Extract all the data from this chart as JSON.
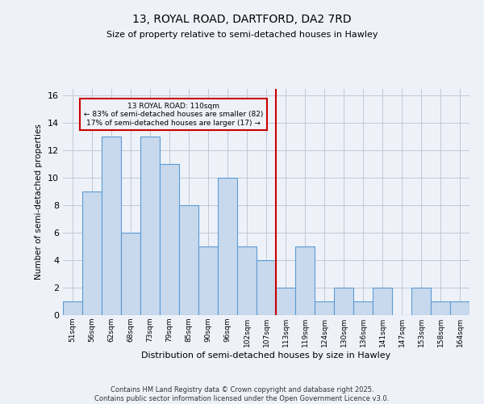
{
  "title": "13, ROYAL ROAD, DARTFORD, DA2 7RD",
  "subtitle": "Size of property relative to semi-detached houses in Hawley",
  "xlabel": "Distribution of semi-detached houses by size in Hawley",
  "ylabel": "Number of semi-detached properties",
  "categories": [
    "51sqm",
    "56sqm",
    "62sqm",
    "68sqm",
    "73sqm",
    "79sqm",
    "85sqm",
    "90sqm",
    "96sqm",
    "102sqm",
    "107sqm",
    "113sqm",
    "119sqm",
    "124sqm",
    "130sqm",
    "136sqm",
    "141sqm",
    "147sqm",
    "153sqm",
    "158sqm",
    "164sqm"
  ],
  "values": [
    1,
    9,
    13,
    6,
    13,
    11,
    8,
    5,
    10,
    5,
    4,
    2,
    5,
    1,
    2,
    1,
    2,
    0,
    2,
    1,
    1
  ],
  "bar_color": "#c8d9ed",
  "bar_edge_color": "#5b9bd5",
  "grid_color": "#c0c8d8",
  "ref_line_x": 10.5,
  "ref_line_label": "13 ROYAL ROAD: 110sqm",
  "ref_line_smaller": "← 83% of semi-detached houses are smaller (82)",
  "ref_line_larger": "17% of semi-detached houses are larger (17) →",
  "annotation_box_color": "#cc0000",
  "ylim": [
    0,
    16.5
  ],
  "yticks": [
    0,
    2,
    4,
    6,
    8,
    10,
    12,
    14,
    16
  ],
  "footer": "Contains HM Land Registry data © Crown copyright and database right 2025.\nContains public sector information licensed under the Open Government Licence v3.0.",
  "background_color": "#eef2f8"
}
